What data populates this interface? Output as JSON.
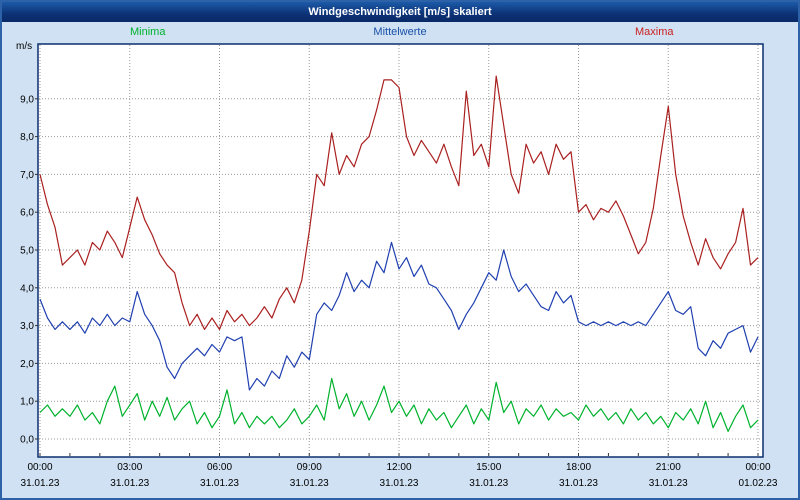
{
  "window": {
    "title": "Windgeschwindigkeit [m/s] skaliert"
  },
  "legend": {
    "minima": "Minima",
    "mittelwerte": "Mittelwerte",
    "maxima": "Maxima"
  },
  "axis": {
    "unit_label": "m/s",
    "y_ticks": [
      "0,0",
      "1,0",
      "2,0",
      "3,0",
      "4,0",
      "5,0",
      "6,0",
      "7,0",
      "8,0",
      "9,0"
    ],
    "x_ticks": [
      "00:00",
      "03:00",
      "06:00",
      "09:00",
      "12:00",
      "15:00",
      "18:00",
      "21:00",
      "00:00"
    ],
    "x_dates": [
      "31.01.23",
      "31.01.23",
      "31.01.23",
      "31.01.23",
      "31.01.23",
      "31.01.23",
      "31.01.23",
      "31.01.23",
      "01.02.23"
    ]
  },
  "colors": {
    "background": "#cfe1f3",
    "plot_background": "#ffffff",
    "plot_border": "#0a2d6e",
    "gridline": "#9a9a9a",
    "minima": "#00b22d",
    "mittelwerte": "#2040b0",
    "maxima": "#aa2020",
    "legend_minima_text": "#00b22d",
    "legend_mittelwerte_text": "#1a50a8",
    "legend_maxima_text": "#cc2020"
  },
  "chart_data": {
    "type": "line",
    "title": "Windgeschwindigkeit [m/s] skaliert",
    "ylabel": "m/s",
    "ylim": [
      0,
      10
    ],
    "grid": true,
    "legend_position": "top",
    "x_ticks": [
      "00:00",
      "03:00",
      "06:00",
      "09:00",
      "12:00",
      "15:00",
      "18:00",
      "21:00",
      "00:00"
    ],
    "x_dates": [
      "31.01.23",
      "31.01.23",
      "31.01.23",
      "31.01.23",
      "31.01.23",
      "31.01.23",
      "31.01.23",
      "31.01.23",
      "01.02.23"
    ],
    "sample_interval_minutes": 15,
    "series": [
      {
        "name": "Maxima",
        "color": "#aa2020",
        "values": [
          7.0,
          6.2,
          5.6,
          4.6,
          4.8,
          5.0,
          4.6,
          5.2,
          5.0,
          5.5,
          5.2,
          4.8,
          5.6,
          6.4,
          5.8,
          5.4,
          4.9,
          4.6,
          4.4,
          3.6,
          3.0,
          3.3,
          2.9,
          3.2,
          2.9,
          3.4,
          3.1,
          3.3,
          3.0,
          3.2,
          3.5,
          3.2,
          3.7,
          4.0,
          3.6,
          4.2,
          5.5,
          7.0,
          6.7,
          8.1,
          7.0,
          7.5,
          7.2,
          7.8,
          8.0,
          8.7,
          9.5,
          9.5,
          9.3,
          8.0,
          7.5,
          7.9,
          7.6,
          7.3,
          7.8,
          7.2,
          6.7,
          9.2,
          7.5,
          7.8,
          7.2,
          9.6,
          8.3,
          7.0,
          6.5,
          7.8,
          7.3,
          7.6,
          7.0,
          7.8,
          7.4,
          7.6,
          6.0,
          6.2,
          5.8,
          6.1,
          6.0,
          6.3,
          5.9,
          5.4,
          4.9,
          5.2,
          6.1,
          7.5,
          8.8,
          7.0,
          5.9,
          5.2,
          4.6,
          5.3,
          4.8,
          4.5,
          4.9,
          5.2,
          6.1,
          4.6,
          4.8
        ]
      },
      {
        "name": "Mittelwerte",
        "color": "#2040b0",
        "values": [
          3.7,
          3.2,
          2.9,
          3.1,
          2.9,
          3.1,
          2.8,
          3.2,
          3.0,
          3.3,
          3.0,
          3.2,
          3.1,
          3.9,
          3.3,
          3.0,
          2.6,
          1.9,
          1.6,
          2.0,
          2.2,
          2.4,
          2.2,
          2.5,
          2.3,
          2.7,
          2.6,
          2.7,
          1.3,
          1.6,
          1.4,
          1.8,
          1.6,
          2.2,
          1.9,
          2.3,
          2.1,
          3.3,
          3.6,
          3.4,
          3.8,
          4.4,
          3.9,
          4.2,
          4.0,
          4.7,
          4.4,
          5.2,
          4.5,
          4.8,
          4.3,
          4.6,
          4.1,
          4.0,
          3.7,
          3.4,
          2.9,
          3.3,
          3.6,
          4.0,
          4.4,
          4.2,
          5.0,
          4.3,
          3.9,
          4.1,
          3.8,
          3.5,
          3.4,
          3.9,
          3.6,
          3.8,
          3.1,
          3.0,
          3.1,
          3.0,
          3.1,
          3.0,
          3.1,
          3.0,
          3.1,
          3.0,
          3.3,
          3.6,
          3.9,
          3.4,
          3.3,
          3.5,
          2.4,
          2.2,
          2.6,
          2.4,
          2.8,
          2.9,
          3.0,
          2.3,
          2.7
        ]
      },
      {
        "name": "Minima",
        "color": "#00b22d",
        "values": [
          0.7,
          0.9,
          0.6,
          0.8,
          0.6,
          0.9,
          0.5,
          0.7,
          0.4,
          1.0,
          1.4,
          0.6,
          0.9,
          1.2,
          0.5,
          1.0,
          0.6,
          1.1,
          0.5,
          0.8,
          1.0,
          0.4,
          0.7,
          0.3,
          0.6,
          1.3,
          0.4,
          0.7,
          0.3,
          0.6,
          0.4,
          0.6,
          0.3,
          0.5,
          0.8,
          0.4,
          0.6,
          0.9,
          0.5,
          1.6,
          0.8,
          1.2,
          0.6,
          1.0,
          0.5,
          0.9,
          1.4,
          0.7,
          1.0,
          0.6,
          0.9,
          0.4,
          0.8,
          0.5,
          0.7,
          0.3,
          0.6,
          0.9,
          0.4,
          0.8,
          0.5,
          1.5,
          0.7,
          1.0,
          0.4,
          0.8,
          0.6,
          0.9,
          0.5,
          0.8,
          0.6,
          0.7,
          0.5,
          0.9,
          0.6,
          0.8,
          0.5,
          0.7,
          0.4,
          0.8,
          0.5,
          0.7,
          0.4,
          0.6,
          0.3,
          0.7,
          0.5,
          0.8,
          0.4,
          1.0,
          0.3,
          0.7,
          0.2,
          0.6,
          0.9,
          0.3,
          0.5
        ]
      }
    ]
  }
}
